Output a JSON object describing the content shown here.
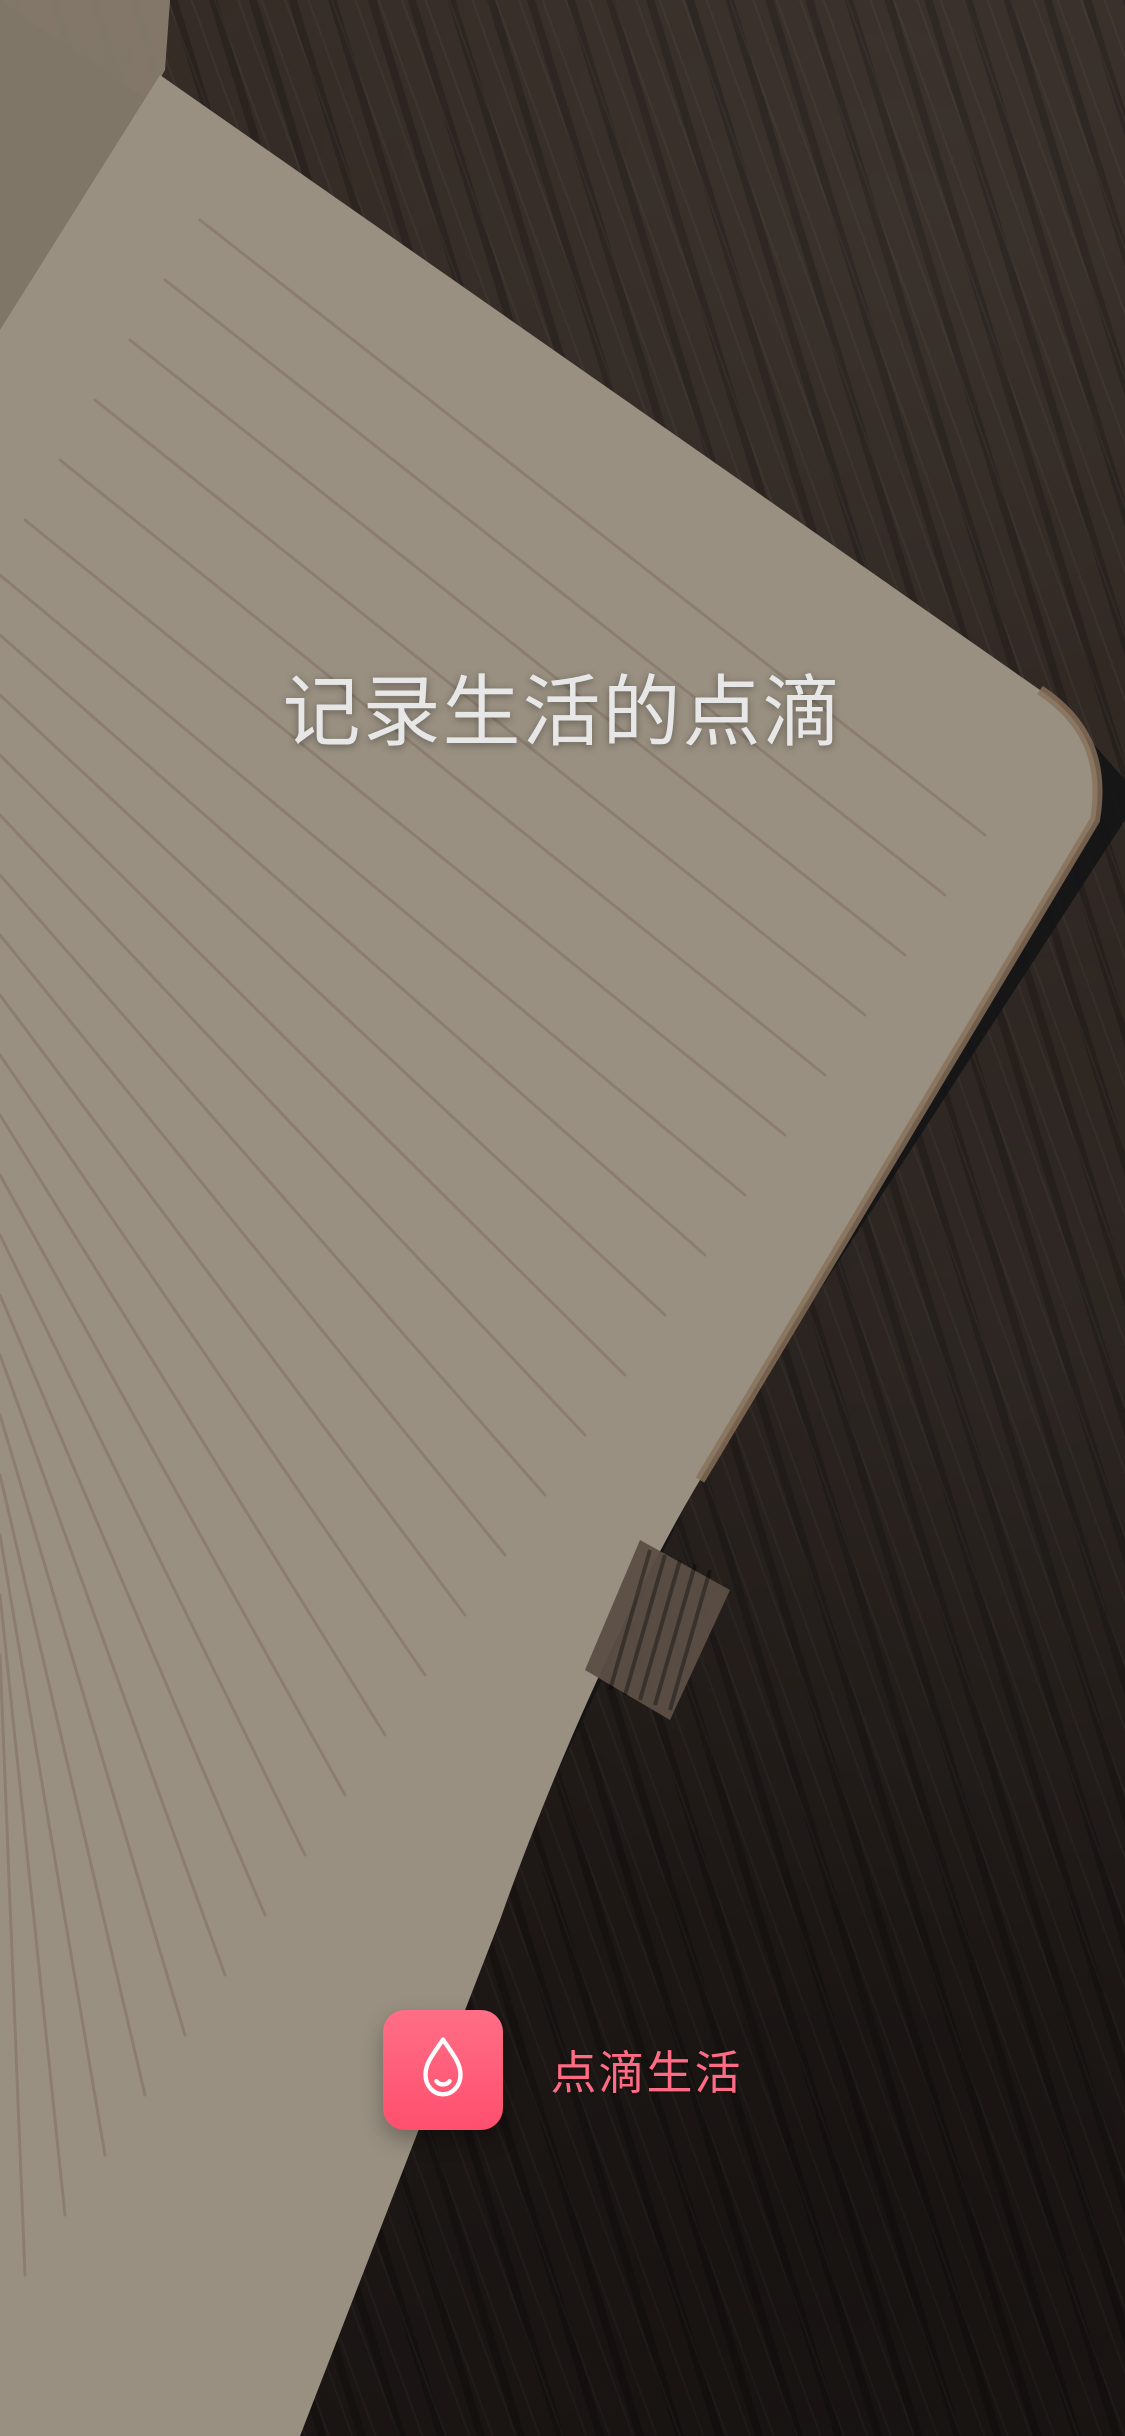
{
  "screen": {
    "headline": "记录生活的点滴",
    "brand": {
      "name": "点滴生活",
      "icon": "water-drop-icon",
      "accent": "#ff5f79"
    }
  }
}
